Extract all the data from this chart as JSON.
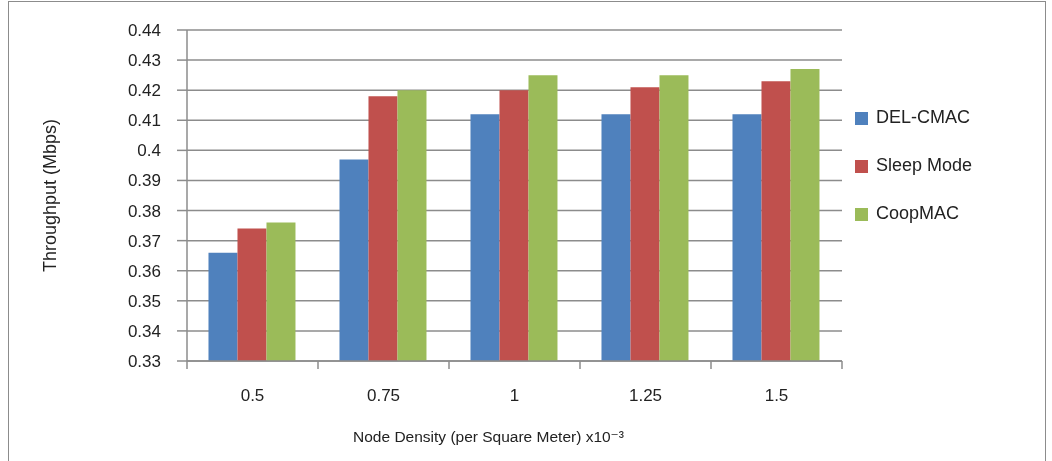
{
  "chart_data": {
    "type": "bar",
    "xlabel": "Node Density (per Square Meter)  x10⁻³",
    "ylabel": "Throughput (Mbps)",
    "categories": [
      "0.5",
      "0.75",
      "1",
      "1.25",
      "1.5"
    ],
    "series": [
      {
        "name": "DEL-CMAC",
        "color": "#4f81bd",
        "values": [
          0.366,
          0.397,
          0.412,
          0.412,
          0.412
        ]
      },
      {
        "name": "Sleep Mode",
        "color": "#c0504d",
        "values": [
          0.374,
          0.418,
          0.42,
          0.421,
          0.423
        ]
      },
      {
        "name": "CoopMAC",
        "color": "#9bbb59",
        "values": [
          0.376,
          0.42,
          0.425,
          0.425,
          0.427
        ]
      }
    ],
    "ylim": [
      0.33,
      0.44
    ],
    "yticks": [
      0.33,
      0.34,
      0.35,
      0.36,
      0.37,
      0.38,
      0.39,
      0.4,
      0.41,
      0.42,
      0.43,
      0.44
    ],
    "grid": "y",
    "legend": "right"
  }
}
